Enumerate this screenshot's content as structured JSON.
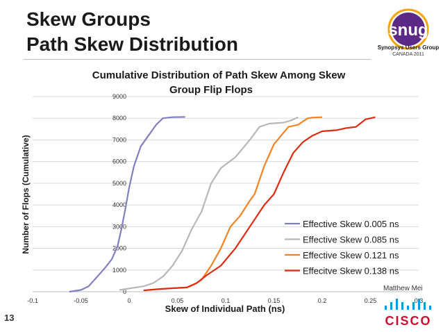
{
  "slide": {
    "title_line1": "Skew Groups",
    "title_line2": "Path Skew Distribution",
    "page_number": "13",
    "author": "Matthew Mei",
    "logo": {
      "name": "snug",
      "subtitle": "Synopsys Users Group",
      "edition": "CANADA 2011"
    },
    "sponsor_logo": "CISCO",
    "colors": {
      "snug_purple": "#5b2a86",
      "snug_orange": "#f5a300",
      "cisco_blue": "#049fd9",
      "cisco_red": "#c8102e"
    }
  },
  "chart_data": {
    "type": "line",
    "title_line1": "Cumulative Distribution of Path Skew Among Skew",
    "title_line2": "Group Flip Flops",
    "xlabel": "Skew of Individual Path (ns)",
    "ylabel": "Number of Flops (Cumulative)",
    "xlim": [
      -0.1,
      0.3
    ],
    "ylim": [
      0,
      9000
    ],
    "x_ticks": [
      "-0.1",
      "-0.05",
      "0",
      "0.05",
      "0.1",
      "0.15",
      "0.2",
      "0.25",
      "0.3"
    ],
    "y_ticks": [
      "0",
      "1000",
      "2000",
      "3000",
      "4000",
      "5000",
      "6000",
      "7000",
      "8000",
      "9000"
    ],
    "grid": "horizontal",
    "legend_position": "right",
    "series": [
      {
        "name": "Effective Skew 0.005 ns",
        "color": "#7f7fbf",
        "x": [
          -0.062,
          -0.05,
          -0.042,
          -0.035,
          -0.025,
          -0.018,
          -0.012,
          -0.008,
          -0.004,
          0.0,
          0.005,
          0.012,
          0.02,
          0.028,
          0.035,
          0.045,
          0.058
        ],
        "y": [
          0,
          80,
          250,
          600,
          1100,
          1500,
          2100,
          2900,
          3800,
          4800,
          5800,
          6700,
          7200,
          7700,
          8000,
          8050,
          8060
        ]
      },
      {
        "name": "Effective Skew 0.085 ns",
        "color": "#b7b7b7",
        "x": [
          -0.01,
          0.0,
          0.015,
          0.025,
          0.035,
          0.045,
          0.055,
          0.065,
          0.075,
          0.085,
          0.095,
          0.11,
          0.125,
          0.135,
          0.145,
          0.16,
          0.168,
          0.175
        ],
        "y": [
          80,
          150,
          250,
          400,
          700,
          1200,
          1900,
          2900,
          3700,
          5000,
          5700,
          6200,
          7000,
          7600,
          7750,
          7800,
          7900,
          8050
        ]
      },
      {
        "name": "Effective Skew 0.121 ns",
        "color": "#f58220",
        "x": [
          0.02,
          0.04,
          0.06,
          0.068,
          0.075,
          0.085,
          0.095,
          0.105,
          0.115,
          0.125,
          0.13,
          0.14,
          0.15,
          0.165,
          0.175,
          0.185,
          0.19,
          0.2
        ],
        "y": [
          80,
          150,
          200,
          350,
          550,
          1200,
          2000,
          3000,
          3500,
          4200,
          4500,
          5800,
          6800,
          7600,
          7700,
          8000,
          8030,
          8050
        ]
      },
      {
        "name": "Effecitve Skew 0.138 ns",
        "color": "#e02a10",
        "x": [
          0.015,
          0.03,
          0.06,
          0.07,
          0.08,
          0.095,
          0.11,
          0.125,
          0.14,
          0.15,
          0.16,
          0.17,
          0.18,
          0.19,
          0.2,
          0.215,
          0.225,
          0.235,
          0.245,
          0.255
        ],
        "y": [
          60,
          120,
          200,
          400,
          750,
          1200,
          2000,
          3000,
          4000,
          4500,
          5500,
          6400,
          6900,
          7200,
          7400,
          7450,
          7550,
          7600,
          7950,
          8050
        ]
      }
    ]
  }
}
